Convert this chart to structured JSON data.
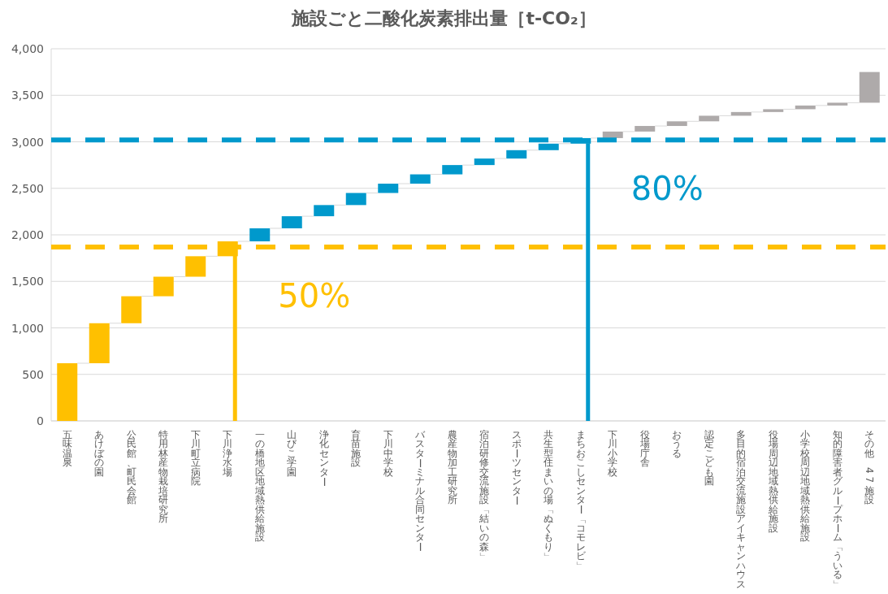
{
  "chart_data": {
    "type": "bar",
    "title": "施設ごと二酸化炭素排出量［t-CO₂］",
    "categories": [
      "五味温泉",
      "あけぼの園",
      "公民館、町民会館",
      "特用林産物栽培研究所",
      "下川町立病院",
      "下川浄水場",
      "一の橋地区地域熱供給施設",
      "山びこ学園",
      "浄化センター",
      "育苗施設",
      "下川中学校",
      "バスターミナル合同センター",
      "農産物加工研究所",
      "宿泊研修交流施設「結いの森」",
      "スポーツセンター",
      "共生型住まいの場「ぬくもり」",
      "まちおこしセンター「コモレビ」",
      "下川小学校",
      "役場庁舎",
      "おうる",
      "認定こども園",
      "多目的宿泊交流施設アイキャンハウス",
      "役場周辺地域熱供給施設",
      "小学校周辺地域熱供給施設",
      "知的障害者グループホーム「ういる」",
      "その他　47施設"
    ],
    "base": [
      0,
      620,
      1050,
      1340,
      1550,
      1770,
      1930,
      2070,
      2200,
      2320,
      2450,
      2550,
      2650,
      2750,
      2820,
      2910,
      2980,
      3040,
      3110,
      3170,
      3220,
      3280,
      3320,
      3350,
      3390,
      3420
    ],
    "values": [
      620,
      430,
      290,
      210,
      220,
      160,
      140,
      130,
      120,
      130,
      100,
      100,
      100,
      70,
      90,
      70,
      60,
      70,
      60,
      50,
      60,
      40,
      30,
      40,
      30,
      330
    ],
    "colors": [
      "#ffc000",
      "#ffc000",
      "#ffc000",
      "#ffc000",
      "#ffc000",
      "#ffc000",
      "#0099cc",
      "#0099cc",
      "#0099cc",
      "#0099cc",
      "#0099cc",
      "#0099cc",
      "#0099cc",
      "#0099cc",
      "#0099cc",
      "#0099cc",
      "#0099cc",
      "#aeaaaa",
      "#aeaaaa",
      "#aeaaaa",
      "#aeaaaa",
      "#aeaaaa",
      "#aeaaaa",
      "#aeaaaa",
      "#aeaaaa",
      "#aeaaaa"
    ],
    "ylim": [
      0,
      4000
    ],
    "yticks": [
      0,
      500,
      {
        "value": 1000,
        "label": "1,000"
      },
      {
        "value": 1500,
        "label": "1,500"
      },
      {
        "value": 2000,
        "label": "2,000"
      },
      {
        "value": 2500,
        "label": "2,500"
      },
      {
        "value": 3000,
        "label": "3,000"
      },
      {
        "value": 3500,
        "label": "3,500"
      },
      {
        "value": 4000,
        "label": "4,000"
      }
    ],
    "grid": "y",
    "ref_lines": [
      {
        "axis": "y",
        "value": 1870,
        "color": "#ffc000",
        "line_style": "dashed"
      },
      {
        "axis": "y",
        "value": 3020,
        "color": "#0099cc",
        "line_style": "dashed"
      },
      {
        "axis": "x",
        "value": "下川浄水場",
        "label": "50%",
        "color": "#ffc000",
        "line_style": "solid"
      },
      {
        "axis": "x",
        "value": "まちおこしセンター「コモレビ」",
        "label": "80%",
        "color": "#0099cc",
        "line_style": "solid"
      }
    ]
  }
}
